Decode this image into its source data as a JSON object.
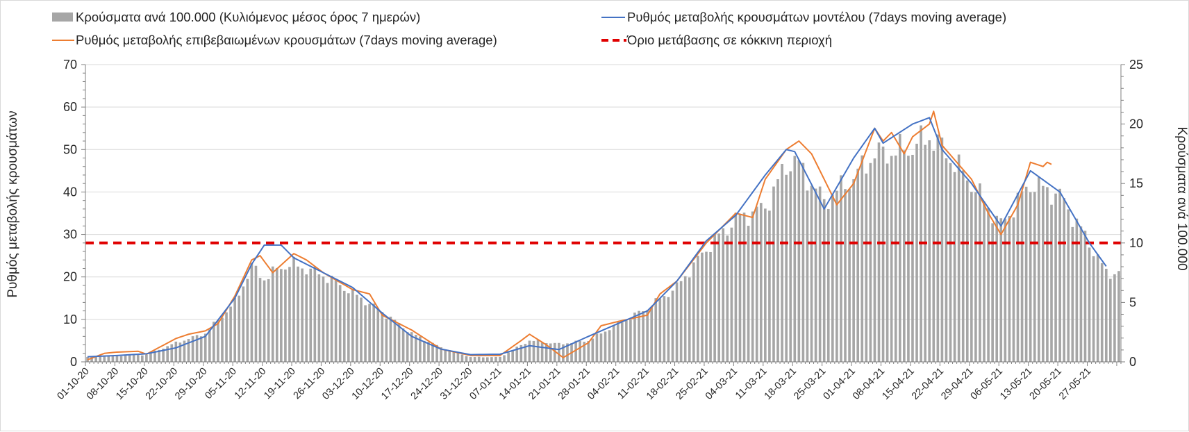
{
  "chart_data": {
    "type": "bar+line",
    "title": "",
    "ylabel_left": "Ρυθμός μεταβολής κρουσμάτων",
    "ylabel_right": "Κρούσματα ανά 100.000",
    "ylim_left": [
      0,
      70
    ],
    "ylim_right": [
      0,
      25
    ],
    "yticks_left": [
      "0",
      "10",
      "20",
      "30",
      "40",
      "50",
      "60",
      "70"
    ],
    "yticks_right": [
      "0",
      "5",
      "10",
      "15",
      "20",
      "25"
    ],
    "x_tick_labels": [
      "01-10-20",
      "08-10-20",
      "15-10-20",
      "22-10-20",
      "29-10-20",
      "05-11-20",
      "12-11-20",
      "19-11-20",
      "26-11-20",
      "03-12-20",
      "10-12-20",
      "17-12-20",
      "24-12-20",
      "31-12-20",
      "07-01-21",
      "14-01-21",
      "21-01-21",
      "28-01-21",
      "04-02-21",
      "11-02-21",
      "18-02-21",
      "25-02-21",
      "04-03-21",
      "11-03-21",
      "18-03-21",
      "25-03-21",
      "01-04-21",
      "08-04-21",
      "15-04-21",
      "22-04-21",
      "29-04-21",
      "06-05-21",
      "13-05-21",
      "20-05-21",
      "27-05-21"
    ],
    "x_start": "01-10-20",
    "n_days": 246,
    "grid": true,
    "legend_position": "top",
    "colors": {
      "bars": "#a6a6a6",
      "model": "#4472c4",
      "confirmed": "#ed7d31",
      "threshold": "#e00000",
      "grid": "#d9d9d9",
      "axis": "#7f7f7f"
    },
    "series": [
      {
        "name": "Κρούσματα ανά 100.000 (Κυλιόμενος μέσος όρος 7 ημερών)",
        "type": "bar",
        "axis": "right",
        "x": [
          "01-10-20",
          "08-10-20",
          "15-10-20",
          "22-10-20",
          "29-10-20",
          "05-11-20",
          "09-11-20",
          "12-11-20",
          "16-11-20",
          "19-11-20",
          "26-11-20",
          "03-12-20",
          "10-12-20",
          "17-12-20",
          "24-12-20",
          "31-12-20",
          "07-01-21",
          "14-01-21",
          "21-01-21",
          "28-01-21",
          "04-02-21",
          "11-02-21",
          "18-02-21",
          "25-02-21",
          "04-03-21",
          "11-03-21",
          "16-03-21",
          "18-03-21",
          "25-03-21",
          "01-04-21",
          "06-04-21",
          "08-04-21",
          "15-04-21",
          "19-04-21",
          "22-04-21",
          "29-04-21",
          "06-05-21",
          "13-05-21",
          "20-05-21",
          "27-05-21",
          "31-05-21"
        ],
        "values": [
          0.4,
          0.5,
          0.6,
          1.6,
          2.4,
          5.0,
          8.0,
          7.0,
          8.0,
          8.2,
          7.3,
          5.8,
          4.2,
          2.4,
          1.2,
          0.4,
          0.4,
          1.8,
          1.5,
          1.8,
          3.2,
          4.5,
          6.3,
          9.5,
          12.0,
          13.0,
          16.5,
          17.0,
          13.5,
          15.5,
          17.5,
          17.5,
          18.0,
          19.0,
          18.0,
          15.0,
          11.5,
          15.0,
          14.0,
          10.0,
          7.5
        ]
      },
      {
        "name": "Ρυθμός μεταβολής κρουσμάτων μοντέλου (7days moving average)",
        "type": "line",
        "axis": "left",
        "x": [
          "01-10-20",
          "08-10-20",
          "15-10-20",
          "22-10-20",
          "29-10-20",
          "05-11-20",
          "09-11-20",
          "12-11-20",
          "16-11-20",
          "19-11-20",
          "26-11-20",
          "03-12-20",
          "10-12-20",
          "17-12-20",
          "24-12-20",
          "31-12-20",
          "07-01-21",
          "14-01-21",
          "21-01-21",
          "28-01-21",
          "04-02-21",
          "11-02-21",
          "18-02-21",
          "25-02-21",
          "04-03-21",
          "11-03-21",
          "16-03-21",
          "18-03-21",
          "25-03-21",
          "01-04-21",
          "06-04-21",
          "08-04-21",
          "15-04-21",
          "19-04-21",
          "22-04-21",
          "29-04-21",
          "06-05-21",
          "13-05-21",
          "20-05-21",
          "27-05-21",
          "31-05-21"
        ],
        "values": [
          1.2,
          1.5,
          1.9,
          3.3,
          6.0,
          15.0,
          23.0,
          27.5,
          27.5,
          24.5,
          21.0,
          17.5,
          11.5,
          6.0,
          3.0,
          1.7,
          1.8,
          3.8,
          2.9,
          6.0,
          9.0,
          12.0,
          19.0,
          28.5,
          34.5,
          44.0,
          50.0,
          49.5,
          36.0,
          48.0,
          55.0,
          51.5,
          56.0,
          57.5,
          50.0,
          42.0,
          32.0,
          45.0,
          40.0,
          28.0,
          22.5
        ]
      },
      {
        "name": "Ρυθμός μεταβολής επιβεβαιωμένων κρουσμάτων (7days moving average)",
        "type": "line",
        "axis": "left",
        "x": [
          "01-10-20",
          "05-10-20",
          "08-10-20",
          "13-10-20",
          "15-10-20",
          "22-10-20",
          "25-10-20",
          "29-10-20",
          "01-11-20",
          "05-11-20",
          "09-11-20",
          "11-11-20",
          "14-11-20",
          "19-11-20",
          "22-11-20",
          "26-11-20",
          "03-12-20",
          "07-12-20",
          "10-12-20",
          "17-12-20",
          "24-12-20",
          "31-12-20",
          "07-01-21",
          "12-01-21",
          "14-01-21",
          "18-01-21",
          "22-01-21",
          "28-01-21",
          "31-01-21",
          "04-02-21",
          "11-02-21",
          "14-02-21",
          "18-02-21",
          "25-02-21",
          "04-03-21",
          "08-03-21",
          "11-03-21",
          "16-03-21",
          "19-03-21",
          "22-03-21",
          "25-03-21",
          "28-03-21",
          "01-04-21",
          "06-04-21",
          "08-04-21",
          "10-04-21",
          "13-04-21",
          "15-04-21",
          "19-04-21",
          "20-04-21",
          "22-04-21",
          "29-04-21",
          "03-05-21",
          "06-05-21",
          "10-05-21",
          "13-05-21",
          "16-05-21",
          "17-05-21",
          "18-05-21"
        ],
        "values": [
          0.5,
          2.0,
          2.3,
          2.5,
          1.8,
          5.5,
          6.5,
          7.3,
          9.0,
          15.5,
          24.0,
          25.0,
          21.0,
          25.5,
          24.0,
          21.0,
          17.0,
          16.0,
          11.0,
          7.5,
          3.0,
          1.5,
          1.5,
          5.0,
          6.5,
          4.0,
          1.0,
          4.5,
          8.5,
          9.5,
          11.0,
          16.0,
          19.0,
          28.0,
          35.0,
          34.0,
          43.0,
          50.0,
          52.0,
          49.0,
          43.0,
          37.0,
          42.0,
          55.0,
          52.0,
          54.0,
          49.0,
          53.0,
          56.0,
          59.0,
          51.0,
          43.0,
          35.0,
          30.0,
          37.0,
          47.0,
          46.0,
          47.0,
          46.5
        ]
      },
      {
        "name": "Όριο μετάβασης σε κόκκινη περιοχή",
        "type": "line",
        "axis": "left",
        "style": "dashed",
        "values": [
          28
        ]
      }
    ]
  }
}
